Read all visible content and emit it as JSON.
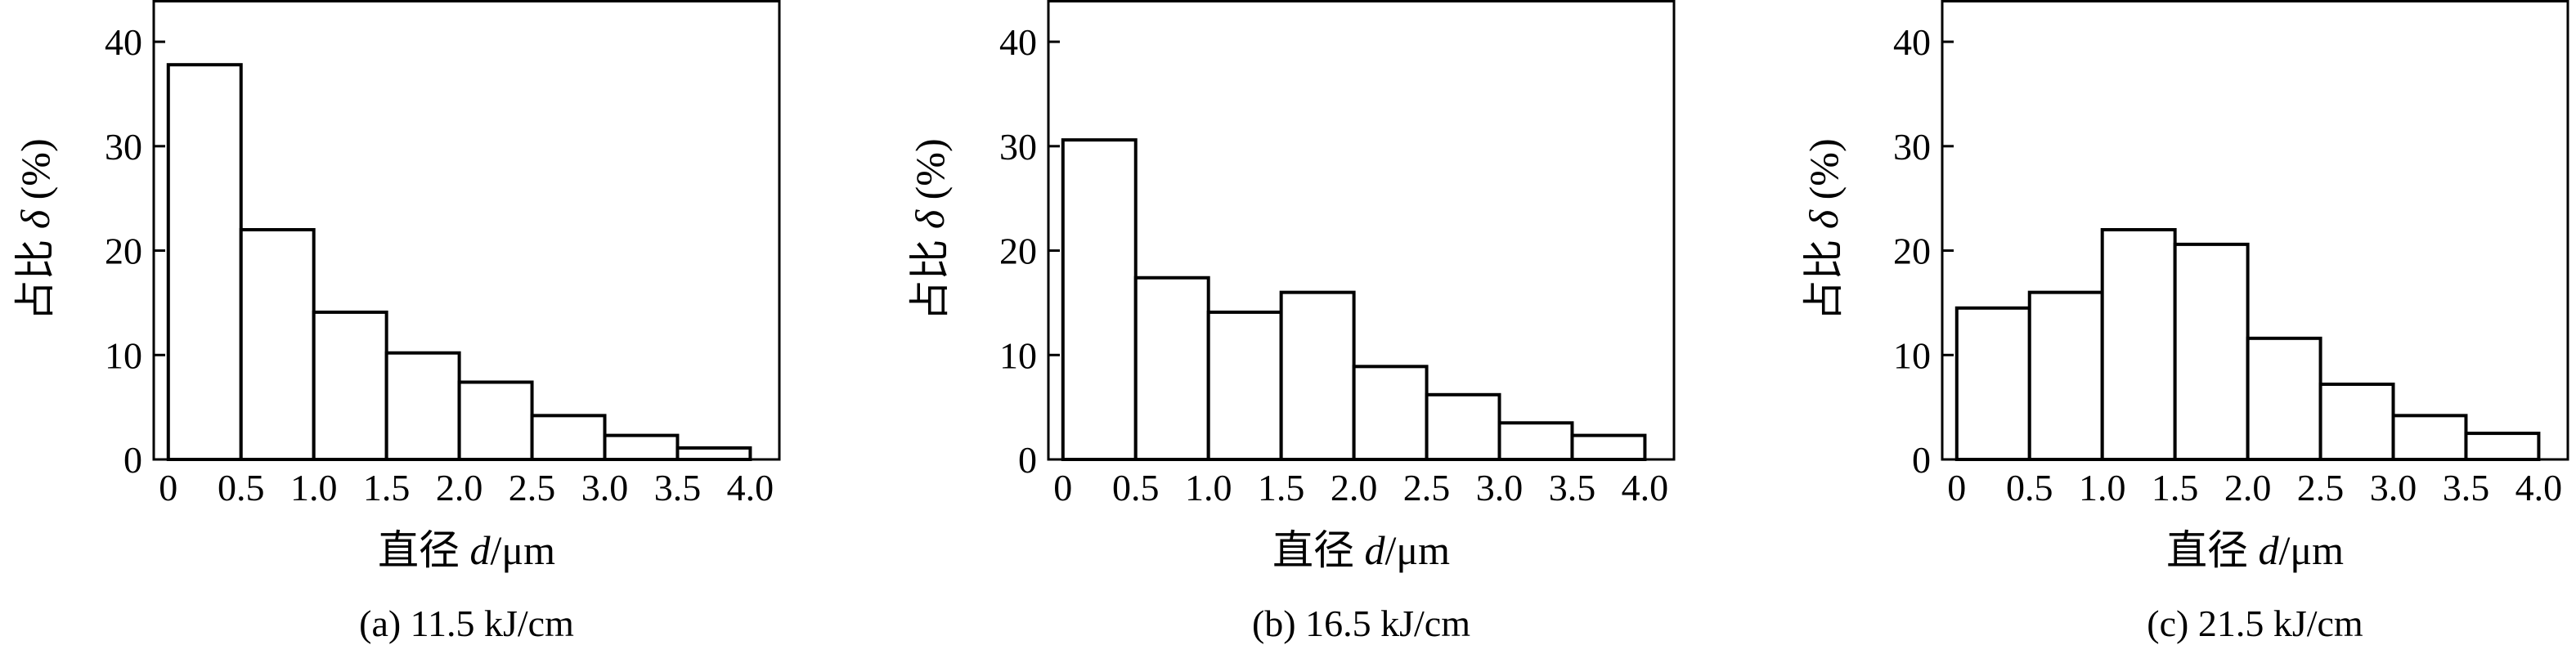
{
  "chart_data": [
    {
      "type": "bar",
      "caption": "(a) 11.5  kJ/cm",
      "xlabel_text": "直径 ",
      "xlabel_var": "d",
      "xlabel_unit": "/μm",
      "ylabel_text": "占比 ",
      "ylabel_var": "δ",
      "ylabel_unit": " (%)",
      "x_ticks": [
        "0",
        "0.5",
        "1.0",
        "1.5",
        "2.0",
        "2.5",
        "3.0",
        "3.5",
        "4.0"
      ],
      "y_ticks": [
        "0",
        "10",
        "20",
        "30",
        "40"
      ],
      "bin_edges": [
        0,
        0.5,
        1.0,
        1.5,
        2.0,
        2.5,
        3.0,
        3.5,
        4.0
      ],
      "values": [
        37.8,
        22.0,
        14.1,
        10.2,
        7.4,
        4.2,
        2.3,
        1.1
      ],
      "xlim": [
        -0.1,
        4.2
      ],
      "ylim": [
        0,
        44
      ]
    },
    {
      "type": "bar",
      "caption": "(b) 16.5  kJ/cm",
      "xlabel_text": "直径 ",
      "xlabel_var": "d",
      "xlabel_unit": "/μm",
      "ylabel_text": "占比 ",
      "ylabel_var": "δ",
      "ylabel_unit": " (%)",
      "x_ticks": [
        "0",
        "0.5",
        "1.0",
        "1.5",
        "2.0",
        "2.5",
        "3.0",
        "3.5",
        "4.0"
      ],
      "y_ticks": [
        "0",
        "10",
        "20",
        "30",
        "40"
      ],
      "bin_edges": [
        0,
        0.5,
        1.0,
        1.5,
        2.0,
        2.5,
        3.0,
        3.5,
        4.0
      ],
      "values": [
        30.6,
        17.4,
        14.1,
        16.0,
        8.9,
        6.2,
        3.5,
        2.3
      ],
      "xlim": [
        -0.1,
        4.2
      ],
      "ylim": [
        0,
        44
      ]
    },
    {
      "type": "bar",
      "caption": "(c) 21.5  kJ/cm",
      "xlabel_text": "直径 ",
      "xlabel_var": "d",
      "xlabel_unit": "/μm",
      "ylabel_text": "占比 ",
      "ylabel_var": "δ",
      "ylabel_unit": " (%)",
      "x_ticks": [
        "0",
        "0.5",
        "1.0",
        "1.5",
        "2.0",
        "2.5",
        "3.0",
        "3.5",
        "4.0"
      ],
      "y_ticks": [
        "0",
        "10",
        "20",
        "30",
        "40"
      ],
      "bin_edges": [
        0,
        0.5,
        1.0,
        1.5,
        2.0,
        2.5,
        3.0,
        3.5,
        4.0
      ],
      "values": [
        14.5,
        16.0,
        22.0,
        20.6,
        11.6,
        7.2,
        4.2,
        2.5
      ],
      "xlim": [
        -0.1,
        4.2
      ],
      "ylim": [
        0,
        44
      ]
    }
  ]
}
